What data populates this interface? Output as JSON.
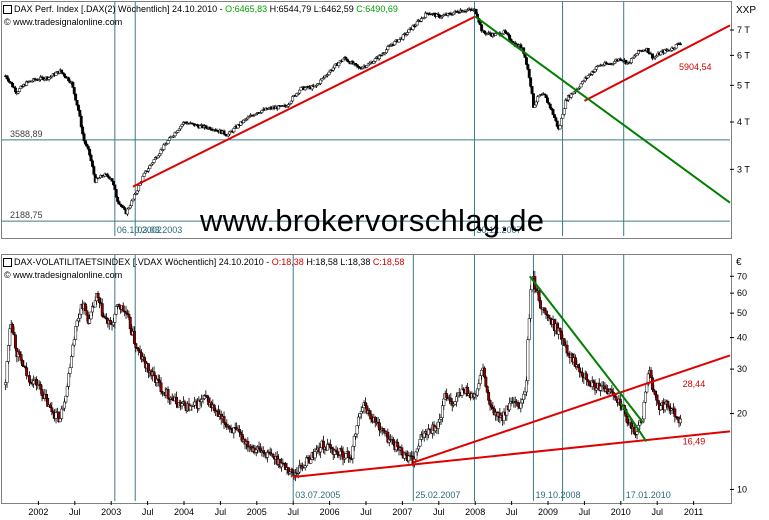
{
  "watermark": "www.brokervorschlag.de",
  "top_panel": {
    "source": "© www.tradesignalonline.com",
    "header": {
      "name": "DAX Perf. Index [.DAX(2) Wöchentlich] 24.10.2010 - ",
      "open": "O:6465,83",
      "high": "H:6544,79",
      "low": "L:6462,59",
      "close": "C:6490,69"
    },
    "unit": "XXP"
  },
  "bottom_panel": {
    "source": "© www.tradesignalonline.com",
    "header": {
      "name": "DAX-VOLATILITAETSINDEX [.VDAX Wöchentlich] 24.10.2010 - ",
      "open": "O:18,38",
      "high": "H:18,58",
      "low": "L:18,38",
      "close": "C:18,58"
    },
    "unit": "€"
  },
  "chart_data": [
    {
      "type": "candlestick",
      "title": "DAX Perf. Index [.DAX(2) Wöchentlich]",
      "y_scale": "log",
      "ylim": [
        2000,
        8300
      ],
      "y_ticks": [
        {
          "v": 3000,
          "label": "3 T"
        },
        {
          "v": 4000,
          "label": "4 T"
        },
        {
          "v": 5000,
          "label": "5 T"
        },
        {
          "v": 6000,
          "label": "6 T"
        },
        {
          "v": 7000,
          "label": "7 T"
        }
      ],
      "horizontal_levels": [
        {
          "value": 3588.89,
          "label": "3588,89"
        },
        {
          "value": 2188.75,
          "label": "2188,75"
        }
      ],
      "annotations": [
        {
          "date": 2003.05,
          "label": "06.10.2002"
        },
        {
          "date": 2003.33,
          "label": "03.03.2003"
        },
        {
          "date": 2007.99,
          "label": "30.12.2007"
        },
        {
          "date": 2010.8,
          "value": 5904.54,
          "label": "5904,54"
        }
      ],
      "trendlines": [
        {
          "color": "#e00000",
          "from": [
            2003.3,
            2700
          ],
          "to": [
            2008.0,
            7600
          ]
        },
        {
          "color": "#e00000",
          "from": [
            2009.5,
            4550
          ],
          "to": [
            2011.5,
            7200
          ]
        },
        {
          "color": "#008000",
          "from": [
            2008.0,
            7600
          ],
          "to": [
            2011.5,
            2450
          ]
        }
      ],
      "vertical_markers": [
        2003.05,
        2003.33,
        2007.99,
        2009.2,
        2010.04
      ],
      "series": [
        {
          "date": 2001.55,
          "value": 5300
        },
        {
          "date": 2001.7,
          "value": 4800
        },
        {
          "date": 2001.85,
          "value": 5100
        },
        {
          "date": 2002.0,
          "value": 5200
        },
        {
          "date": 2002.15,
          "value": 5250
        },
        {
          "date": 2002.3,
          "value": 5450
        },
        {
          "date": 2002.45,
          "value": 5100
        },
        {
          "date": 2002.55,
          "value": 4300
        },
        {
          "date": 2002.62,
          "value": 3600
        },
        {
          "date": 2002.7,
          "value": 3300
        },
        {
          "date": 2002.78,
          "value": 2800
        },
        {
          "date": 2002.9,
          "value": 2900
        },
        {
          "date": 2003.0,
          "value": 2850
        },
        {
          "date": 2003.08,
          "value": 2500
        },
        {
          "date": 2003.2,
          "value": 2300
        },
        {
          "date": 2003.3,
          "value": 2500
        },
        {
          "date": 2003.45,
          "value": 2900
        },
        {
          "date": 2003.6,
          "value": 3200
        },
        {
          "date": 2003.8,
          "value": 3600
        },
        {
          "date": 2004.0,
          "value": 4000
        },
        {
          "date": 2004.2,
          "value": 3900
        },
        {
          "date": 2004.4,
          "value": 3850
        },
        {
          "date": 2004.6,
          "value": 3700
        },
        {
          "date": 2004.8,
          "value": 4000
        },
        {
          "date": 2005.0,
          "value": 4250
        },
        {
          "date": 2005.2,
          "value": 4350
        },
        {
          "date": 2005.4,
          "value": 4400
        },
        {
          "date": 2005.6,
          "value": 4900
        },
        {
          "date": 2005.8,
          "value": 4950
        },
        {
          "date": 2006.0,
          "value": 5450
        },
        {
          "date": 2006.2,
          "value": 5900
        },
        {
          "date": 2006.4,
          "value": 5550
        },
        {
          "date": 2006.55,
          "value": 5700
        },
        {
          "date": 2006.7,
          "value": 6000
        },
        {
          "date": 2006.85,
          "value": 6400
        },
        {
          "date": 2007.0,
          "value": 6700
        },
        {
          "date": 2007.2,
          "value": 7300
        },
        {
          "date": 2007.35,
          "value": 7800
        },
        {
          "date": 2007.5,
          "value": 7600
        },
        {
          "date": 2007.65,
          "value": 7700
        },
        {
          "date": 2007.8,
          "value": 7900
        },
        {
          "date": 2008.0,
          "value": 7900
        },
        {
          "date": 2008.1,
          "value": 6900
        },
        {
          "date": 2008.25,
          "value": 6800
        },
        {
          "date": 2008.4,
          "value": 6900
        },
        {
          "date": 2008.55,
          "value": 6400
        },
        {
          "date": 2008.65,
          "value": 6300
        },
        {
          "date": 2008.75,
          "value": 5200
        },
        {
          "date": 2008.8,
          "value": 4400
        },
        {
          "date": 2008.88,
          "value": 4700
        },
        {
          "date": 2008.95,
          "value": 4700
        },
        {
          "date": 2009.05,
          "value": 4300
        },
        {
          "date": 2009.15,
          "value": 3800
        },
        {
          "date": 2009.25,
          "value": 4600
        },
        {
          "date": 2009.4,
          "value": 4900
        },
        {
          "date": 2009.55,
          "value": 5300
        },
        {
          "date": 2009.7,
          "value": 5650
        },
        {
          "date": 2009.85,
          "value": 5700
        },
        {
          "date": 2010.0,
          "value": 5900
        },
        {
          "date": 2010.1,
          "value": 5700
        },
        {
          "date": 2010.25,
          "value": 6150
        },
        {
          "date": 2010.35,
          "value": 6250
        },
        {
          "date": 2010.45,
          "value": 5900
        },
        {
          "date": 2010.55,
          "value": 6100
        },
        {
          "date": 2010.7,
          "value": 6250
        },
        {
          "date": 2010.82,
          "value": 6490
        }
      ]
    },
    {
      "type": "candlestick",
      "title": "DAX-VOLATILITAETSINDEX [.VDAX Wöchentlich]",
      "y_scale": "log",
      "ylim": [
        9,
        85
      ],
      "y_ticks": [
        {
          "v": 10,
          "label": "10"
        },
        {
          "v": 20,
          "label": "20"
        },
        {
          "v": 30,
          "label": "30"
        },
        {
          "v": 40,
          "label": "40"
        },
        {
          "v": 50,
          "label": "50"
        },
        {
          "v": 60,
          "label": "60"
        },
        {
          "v": 70,
          "label": "70"
        }
      ],
      "annotations": [
        {
          "date": 2005.5,
          "label": "03.07.2005"
        },
        {
          "date": 2007.15,
          "label": "25.02.2007"
        },
        {
          "date": 2008.8,
          "label": "19.10.2008"
        },
        {
          "date": 2010.04,
          "label": "17.01.2010"
        },
        {
          "date": 2010.85,
          "value": 28.44,
          "label": "28,44"
        },
        {
          "date": 2010.85,
          "value": 16.49,
          "label": "16,49"
        }
      ],
      "trendlines": [
        {
          "color": "#e00000",
          "from": [
            2005.5,
            11.2
          ],
          "to": [
            2011.5,
            17.0
          ]
        },
        {
          "color": "#e00000",
          "from": [
            2007.15,
            12.8
          ],
          "to": [
            2011.5,
            34.0
          ]
        },
        {
          "color": "#008000",
          "from": [
            2008.75,
            70
          ],
          "to": [
            2010.3,
            18.5
          ]
        },
        {
          "color": "#008000",
          "from": [
            2010.0,
            22
          ],
          "to": [
            2010.35,
            15.5
          ]
        }
      ],
      "vertical_markers": [
        2003.05,
        2003.33,
        2005.5,
        2007.15,
        2007.99,
        2008.8,
        2009.2,
        2010.04
      ],
      "series": [
        {
          "date": 2001.55,
          "value": 26
        },
        {
          "date": 2001.62,
          "value": 48
        },
        {
          "date": 2001.7,
          "value": 35
        },
        {
          "date": 2001.85,
          "value": 28
        },
        {
          "date": 2002.0,
          "value": 26
        },
        {
          "date": 2002.15,
          "value": 21
        },
        {
          "date": 2002.3,
          "value": 19
        },
        {
          "date": 2002.4,
          "value": 26
        },
        {
          "date": 2002.5,
          "value": 42
        },
        {
          "date": 2002.6,
          "value": 55
        },
        {
          "date": 2002.7,
          "value": 46
        },
        {
          "date": 2002.8,
          "value": 58
        },
        {
          "date": 2002.9,
          "value": 48
        },
        {
          "date": 2003.0,
          "value": 44
        },
        {
          "date": 2003.1,
          "value": 54
        },
        {
          "date": 2003.2,
          "value": 50
        },
        {
          "date": 2003.35,
          "value": 36
        },
        {
          "date": 2003.5,
          "value": 30
        },
        {
          "date": 2003.7,
          "value": 25
        },
        {
          "date": 2003.9,
          "value": 22
        },
        {
          "date": 2004.1,
          "value": 21
        },
        {
          "date": 2004.3,
          "value": 23
        },
        {
          "date": 2004.5,
          "value": 19
        },
        {
          "date": 2004.7,
          "value": 17
        },
        {
          "date": 2004.9,
          "value": 15
        },
        {
          "date": 2005.1,
          "value": 14
        },
        {
          "date": 2005.3,
          "value": 13
        },
        {
          "date": 2005.5,
          "value": 11.5
        },
        {
          "date": 2005.7,
          "value": 13
        },
        {
          "date": 2005.9,
          "value": 15
        },
        {
          "date": 2006.1,
          "value": 14
        },
        {
          "date": 2006.3,
          "value": 13.5
        },
        {
          "date": 2006.45,
          "value": 22
        },
        {
          "date": 2006.6,
          "value": 19
        },
        {
          "date": 2006.8,
          "value": 16
        },
        {
          "date": 2007.0,
          "value": 14
        },
        {
          "date": 2007.15,
          "value": 12.8
        },
        {
          "date": 2007.3,
          "value": 17
        },
        {
          "date": 2007.5,
          "value": 18
        },
        {
          "date": 2007.6,
          "value": 24
        },
        {
          "date": 2007.7,
          "value": 22
        },
        {
          "date": 2007.85,
          "value": 25
        },
        {
          "date": 2008.0,
          "value": 23
        },
        {
          "date": 2008.1,
          "value": 30
        },
        {
          "date": 2008.2,
          "value": 21
        },
        {
          "date": 2008.35,
          "value": 19
        },
        {
          "date": 2008.5,
          "value": 22
        },
        {
          "date": 2008.6,
          "value": 21
        },
        {
          "date": 2008.7,
          "value": 25
        },
        {
          "date": 2008.78,
          "value": 70
        },
        {
          "date": 2008.85,
          "value": 60
        },
        {
          "date": 2008.92,
          "value": 52
        },
        {
          "date": 2009.0,
          "value": 48
        },
        {
          "date": 2009.1,
          "value": 44
        },
        {
          "date": 2009.2,
          "value": 40
        },
        {
          "date": 2009.3,
          "value": 34
        },
        {
          "date": 2009.45,
          "value": 30
        },
        {
          "date": 2009.6,
          "value": 26
        },
        {
          "date": 2009.75,
          "value": 25
        },
        {
          "date": 2009.9,
          "value": 24
        },
        {
          "date": 2010.0,
          "value": 22
        },
        {
          "date": 2010.1,
          "value": 18
        },
        {
          "date": 2010.2,
          "value": 17
        },
        {
          "date": 2010.3,
          "value": 19
        },
        {
          "date": 2010.38,
          "value": 30
        },
        {
          "date": 2010.45,
          "value": 24
        },
        {
          "date": 2010.55,
          "value": 21
        },
        {
          "date": 2010.65,
          "value": 22
        },
        {
          "date": 2010.75,
          "value": 20
        },
        {
          "date": 2010.82,
          "value": 18.6
        }
      ]
    }
  ],
  "x_axis": {
    "labels": [
      {
        "date": 2002.0,
        "label": "2002"
      },
      {
        "date": 2002.5,
        "label": "Jul"
      },
      {
        "date": 2003.0,
        "label": "2003"
      },
      {
        "date": 2003.5,
        "label": "Jul"
      },
      {
        "date": 2004.0,
        "label": "2004"
      },
      {
        "date": 2004.5,
        "label": "Jul"
      },
      {
        "date": 2005.0,
        "label": "2005"
      },
      {
        "date": 2005.5,
        "label": "Jul"
      },
      {
        "date": 2006.0,
        "label": "2006"
      },
      {
        "date": 2006.5,
        "label": "Jul"
      },
      {
        "date": 2007.0,
        "label": "2007"
      },
      {
        "date": 2007.5,
        "label": "Jul"
      },
      {
        "date": 2008.0,
        "label": "2008"
      },
      {
        "date": 2008.5,
        "label": "Jul"
      },
      {
        "date": 2009.0,
        "label": "2009"
      },
      {
        "date": 2009.5,
        "label": "Jul"
      },
      {
        "date": 2010.0,
        "label": "2010"
      },
      {
        "date": 2010.5,
        "label": "Jul"
      },
      {
        "date": 2011.0,
        "label": "2011"
      }
    ]
  }
}
